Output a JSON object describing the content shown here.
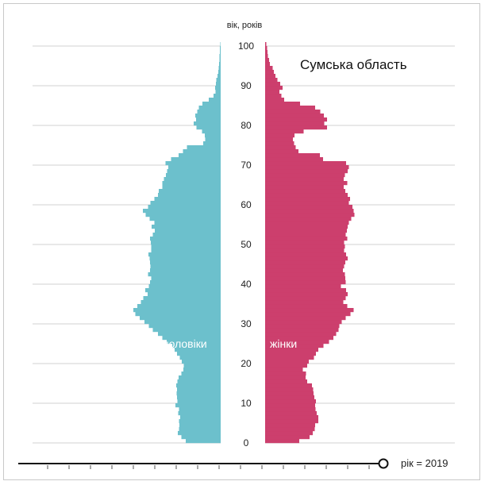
{
  "chart_data": {
    "type": "bar",
    "orientation": "horizontal-pyramid",
    "title": "Сумська область",
    "ylabel": "вік, років",
    "y_ticks": [
      0,
      10,
      20,
      30,
      40,
      50,
      60,
      70,
      80,
      90,
      100
    ],
    "ylim": [
      0,
      100
    ],
    "grid": true,
    "series": [
      {
        "name": "чоловіки",
        "side": "left",
        "color": "#6cc0cc",
        "age_range": [
          0,
          100
        ],
        "values": [
          8.8,
          9.9,
          10.8,
          10.5,
          10.4,
          10.5,
          10.2,
          10.7,
          10.5,
          11.4,
          10.9,
          11.0,
          11.1,
          11.0,
          11.2,
          10.9,
          10.6,
          9.9,
          9.4,
          9.3,
          9.8,
          10.3,
          11.0,
          11.6,
          12.2,
          13.6,
          14.7,
          15.8,
          17.1,
          18.1,
          19.2,
          20.4,
          21.5,
          22.0,
          21.0,
          20.1,
          19.5,
          18.4,
          19.0,
          18.1,
          17.8,
          17.5,
          18.3,
          17.8,
          17.7,
          17.8,
          17.9,
          18.2,
          17.5,
          17.5,
          17.6,
          17.8,
          17.1,
          16.6,
          17.4,
          16.7,
          17.9,
          18.9,
          19.6,
          18.3,
          17.7,
          16.7,
          15.8,
          15.6,
          14.7,
          14.7,
          14.3,
          13.8,
          13.5,
          13.2,
          13.9,
          12.5,
          10.6,
          9.5,
          8.5,
          4.4,
          3.9,
          4.0,
          4.7,
          6.1,
          6.8,
          6.2,
          6.4,
          5.9,
          5.5,
          4.6,
          3.0,
          1.8,
          1.3,
          1.4,
          1.2,
          1.1,
          0.8,
          0.6,
          0.5,
          0.4,
          0.3,
          0.3,
          0.2,
          0.2,
          0.1
        ]
      },
      {
        "name": "жінки",
        "side": "right",
        "color": "#cc3f6d",
        "age_range": [
          0,
          100
        ],
        "values": [
          8.6,
          11.2,
          12.0,
          12.5,
          12.6,
          13.4,
          13.4,
          13.0,
          12.7,
          12.6,
          12.8,
          12.4,
          12.2,
          12.1,
          11.8,
          10.6,
          10.2,
          10.3,
          9.5,
          10.6,
          11.0,
          12.3,
          12.8,
          13.4,
          14.7,
          16.1,
          17.2,
          17.9,
          18.5,
          18.7,
          19.3,
          20.3,
          21.5,
          22.3,
          20.7,
          19.7,
          20.3,
          20.8,
          20.4,
          19.1,
          20.3,
          20.2,
          20.1,
          19.6,
          19.9,
          20.2,
          20.8,
          20.4,
          19.9,
          20.1,
          19.9,
          20.7,
          20.3,
          20.6,
          20.8,
          21.1,
          21.7,
          22.5,
          22.3,
          22.0,
          21.1,
          21.4,
          20.8,
          20.2,
          19.8,
          20.7,
          19.8,
          20.1,
          20.8,
          21.1,
          20.4,
          14.6,
          13.8,
          8.4,
          7.7,
          7.3,
          7.0,
          7.4,
          9.7,
          15.6,
          14.9,
          15.6,
          14.8,
          13.9,
          12.6,
          8.8,
          4.8,
          4.1,
          3.6,
          4.4,
          3.8,
          3.1,
          2.6,
          2.2,
          1.9,
          1.2,
          1.0,
          0.7,
          0.6,
          0.5,
          0.3
        ]
      }
    ],
    "legend": "inline labels on bars",
    "x_axis_visible": false
  },
  "labels": {
    "male": "чоловіки",
    "female": "жінки"
  },
  "timeline": {
    "year_label": "рік = 2019",
    "year": 2019,
    "position_fraction": 1.0
  }
}
